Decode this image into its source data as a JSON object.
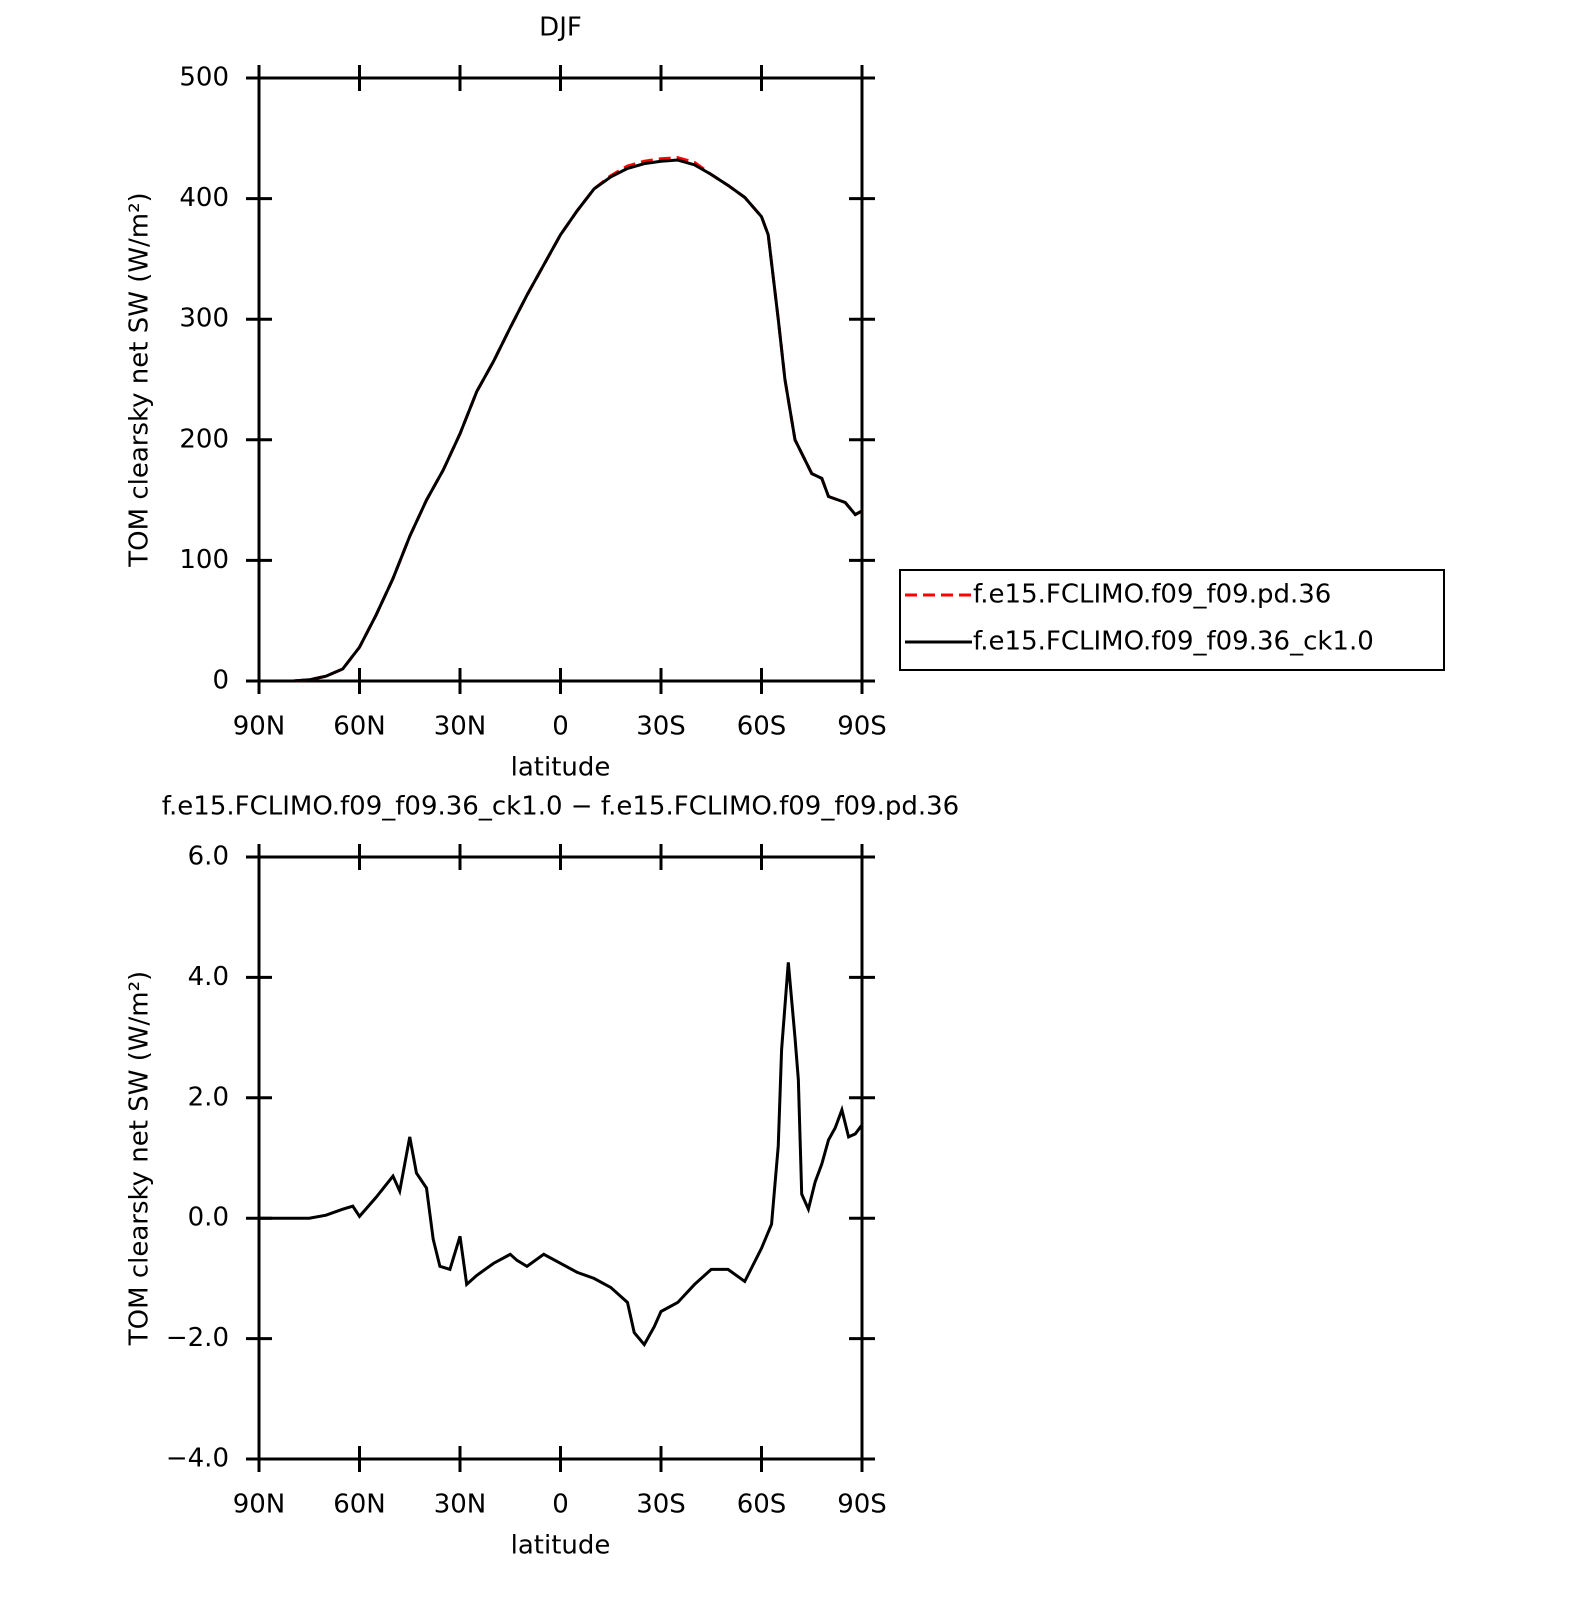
{
  "chart_data": [
    {
      "type": "line",
      "title": "DJF",
      "xlabel": "latitude",
      "ylabel": "TOM clearsky net SW (W/m²)",
      "x": [
        90,
        85,
        80,
        75,
        70,
        65,
        60,
        55,
        50,
        45,
        40,
        35,
        30,
        25,
        20,
        15,
        10,
        5,
        0,
        -5,
        -10,
        -15,
        -20,
        -25,
        -30,
        -35,
        -40,
        -45,
        -50,
        -55,
        -60,
        -62,
        -65,
        -67,
        -70,
        -75,
        -78,
        -80,
        -85,
        -88,
        -90
      ],
      "series": [
        {
          "name": "f.e15.FCLIMO.f09_f09.pd.36",
          "color": "#ff0000",
          "dash": "dashed",
          "values": [
            0,
            0,
            0,
            1,
            4,
            10,
            28,
            55,
            85,
            120,
            150,
            175,
            205,
            240,
            265,
            293,
            320,
            345,
            370,
            390,
            408,
            419,
            427,
            431,
            433,
            434,
            430,
            420,
            411,
            401,
            385,
            370,
            300,
            250,
            200,
            172,
            168,
            153,
            148,
            138,
            141
          ]
        },
        {
          "name": "f.e15.FCLIMO.f09_f09.36_ck1.0",
          "color": "#000000",
          "dash": "solid",
          "values": [
            0,
            0,
            0,
            1,
            4,
            10,
            28,
            55,
            85,
            120,
            150,
            175,
            205,
            240,
            265,
            293,
            320,
            345,
            370,
            390,
            408,
            418,
            425,
            429,
            431,
            432,
            428,
            420,
            411,
            401,
            385,
            370,
            300,
            250,
            200,
            172,
            168,
            153,
            148,
            138,
            141
          ]
        }
      ],
      "xlim": [
        90,
        -90
      ],
      "xticks": [
        {
          "value": 90,
          "label": "90N"
        },
        {
          "value": 60,
          "label": "60N"
        },
        {
          "value": 30,
          "label": "30N"
        },
        0,
        {
          "value": -30,
          "label": "30S"
        },
        {
          "value": -60,
          "label": "60S"
        },
        {
          "value": -90,
          "label": "90S"
        }
      ],
      "ylim": [
        0,
        500
      ],
      "yticks": [
        0,
        100,
        200,
        300,
        400,
        500
      ],
      "legend": "right"
    },
    {
      "type": "line",
      "title": "f.e15.FCLIMO.f09_f09.36_ck1.0 − f.e15.FCLIMO.f09_f09.pd.36",
      "xlabel": "latitude",
      "ylabel": "TOM clearsky net SW (W/m²)",
      "x": [
        90,
        75,
        70,
        65,
        62,
        60,
        55,
        50,
        48,
        45,
        43,
        40,
        38,
        36,
        33,
        30,
        28,
        25,
        20,
        15,
        13,
        10,
        5,
        0,
        -5,
        -10,
        -15,
        -20,
        -22,
        -25,
        -28,
        -30,
        -35,
        -40,
        -45,
        -50,
        -55,
        -60,
        -63,
        -65,
        -66,
        -68,
        -70,
        -71,
        -72,
        -74,
        -76,
        -78,
        -80,
        -82,
        -84,
        -86,
        -88,
        -90
      ],
      "series": [
        {
          "color": "#000000",
          "dash": "solid",
          "values": [
            0,
            0,
            0.05,
            0.15,
            0.2,
            0.03,
            0.35,
            0.7,
            0.45,
            1.35,
            0.75,
            0.5,
            -0.35,
            -0.8,
            -0.85,
            -0.3,
            -1.1,
            -0.95,
            -0.75,
            -0.6,
            -0.7,
            -0.8,
            -0.6,
            -0.75,
            -0.9,
            -1.0,
            -1.15,
            -1.4,
            -1.9,
            -2.1,
            -1.8,
            -1.55,
            -1.4,
            -1.1,
            -0.85,
            -0.85,
            -1.05,
            -0.5,
            -0.1,
            1.2,
            2.8,
            4.25,
            3.0,
            2.3,
            0.4,
            0.15,
            0.6,
            0.9,
            1.3,
            1.5,
            1.8,
            1.35,
            1.4,
            1.55
          ]
        }
      ],
      "xlim": [
        90,
        -90
      ],
      "xticks": [
        {
          "value": 90,
          "label": "90N"
        },
        {
          "value": 60,
          "label": "60N"
        },
        {
          "value": 30,
          "label": "30N"
        },
        0,
        {
          "value": -30,
          "label": "30S"
        },
        {
          "value": -60,
          "label": "60S"
        },
        {
          "value": -90,
          "label": "90S"
        }
      ],
      "ylim": [
        -4,
        6
      ],
      "yticks": [
        {
          "value": -4,
          "label": "−4.0"
        },
        {
          "value": -2,
          "label": "−2.0"
        },
        {
          "value": 0,
          "label": "0.0"
        },
        {
          "value": 2,
          "label": "2.0"
        },
        {
          "value": 4,
          "label": "4.0"
        },
        {
          "value": 6,
          "label": "6.0"
        }
      ]
    }
  ]
}
